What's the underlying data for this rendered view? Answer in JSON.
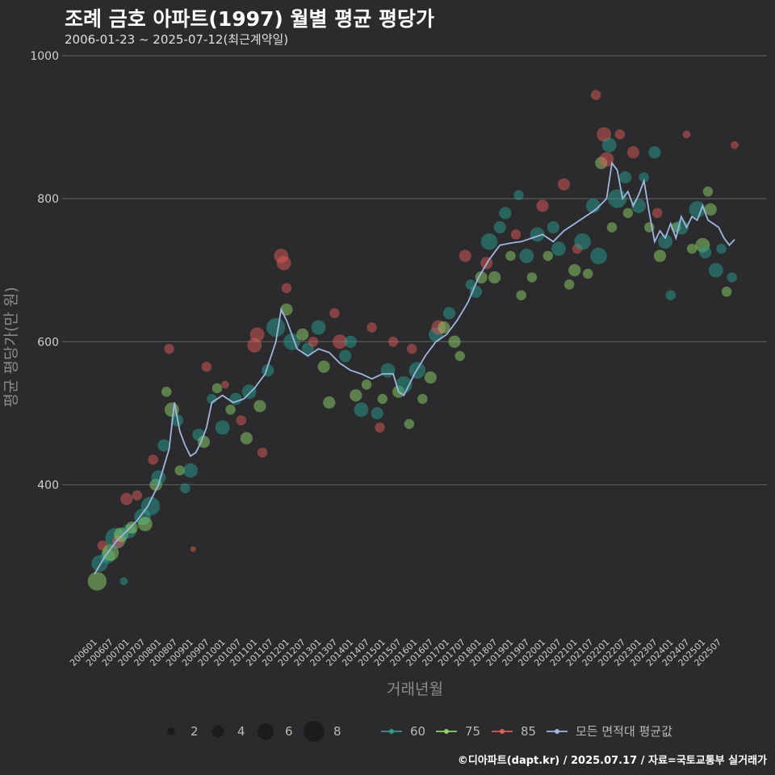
{
  "title": "조례 금호 아파트(1997) 월별 평균 평당가",
  "subtitle": "2006-01-23 ~ 2025-07-12(최근계약일)",
  "credit": "©디아파트(dapt.kr) / 2025.07.17 / 자료=국토교통부 실거래가",
  "colors": {
    "background": "#2b2a2c",
    "grid": "#5a595b",
    "series_60": "#2a9d8f",
    "series_75": "#8fd36a",
    "series_85": "#e05a5a",
    "avg_line": "#9fb7e0"
  },
  "chart_data": {
    "type": "scatter",
    "title": "조례 금호 아파트(1997) 월별 평균 평당가",
    "xlabel": "거래년월",
    "ylabel": "평균 평당가(만 원)",
    "ylim": [
      195,
      1000
    ],
    "yticks": [
      400,
      600,
      800,
      1000
    ],
    "x_tick_labels": [
      "200601",
      "200607",
      "200701",
      "200707",
      "200801",
      "200807",
      "200901",
      "200907",
      "201001",
      "201007",
      "201101",
      "201107",
      "201201",
      "201207",
      "201301",
      "201307",
      "201401",
      "201407",
      "201501",
      "201507",
      "201601",
      "201607",
      "201701",
      "201707",
      "201801",
      "201807",
      "201901",
      "201907",
      "202001",
      "202007",
      "202101",
      "202107",
      "202201",
      "202207",
      "202301",
      "202307",
      "202401",
      "202407",
      "202501",
      "202507"
    ],
    "size_legend": [
      {
        "label": "2",
        "count": 2
      },
      {
        "label": "4",
        "count": 4
      },
      {
        "label": "6",
        "count": 6
      },
      {
        "label": "8",
        "count": 8
      }
    ],
    "series": [
      {
        "name": "60",
        "color": "#2a9d8f"
      },
      {
        "name": "75",
        "color": "#8fd36a"
      },
      {
        "name": "85",
        "color": "#e05a5a"
      },
      {
        "name": "모든 면적대 평균값",
        "color": "#9fb7e0"
      }
    ],
    "avg_line": [
      [
        0,
        275
      ],
      [
        4,
        300
      ],
      [
        8,
        320
      ],
      [
        12,
        335
      ],
      [
        16,
        350
      ],
      [
        20,
        370
      ],
      [
        24,
        400
      ],
      [
        28,
        450
      ],
      [
        30,
        515
      ],
      [
        32,
        475
      ],
      [
        34,
        455
      ],
      [
        36,
        440
      ],
      [
        38,
        445
      ],
      [
        40,
        460
      ],
      [
        42,
        480
      ],
      [
        44,
        515
      ],
      [
        48,
        525
      ],
      [
        52,
        515
      ],
      [
        56,
        520
      ],
      [
        60,
        535
      ],
      [
        64,
        555
      ],
      [
        68,
        600
      ],
      [
        70,
        645
      ],
      [
        72,
        630
      ],
      [
        76,
        590
      ],
      [
        80,
        580
      ],
      [
        84,
        590
      ],
      [
        88,
        585
      ],
      [
        92,
        570
      ],
      [
        96,
        560
      ],
      [
        100,
        555
      ],
      [
        104,
        548
      ],
      [
        108,
        555
      ],
      [
        112,
        555
      ],
      [
        114,
        530
      ],
      [
        116,
        525
      ],
      [
        118,
        540
      ],
      [
        120,
        555
      ],
      [
        124,
        580
      ],
      [
        128,
        600
      ],
      [
        132,
        610
      ],
      [
        136,
        630
      ],
      [
        140,
        655
      ],
      [
        144,
        690
      ],
      [
        148,
        715
      ],
      [
        152,
        735
      ],
      [
        156,
        738
      ],
      [
        160,
        740
      ],
      [
        164,
        745
      ],
      [
        168,
        750
      ],
      [
        172,
        740
      ],
      [
        176,
        755
      ],
      [
        180,
        765
      ],
      [
        184,
        775
      ],
      [
        188,
        785
      ],
      [
        192,
        800
      ],
      [
        194,
        850
      ],
      [
        196,
        840
      ],
      [
        198,
        800
      ],
      [
        200,
        810
      ],
      [
        202,
        790
      ],
      [
        204,
        805
      ],
      [
        206,
        825
      ],
      [
        208,
        780
      ],
      [
        210,
        740
      ],
      [
        212,
        755
      ],
      [
        214,
        745
      ],
      [
        216,
        765
      ],
      [
        218,
        745
      ],
      [
        220,
        775
      ],
      [
        222,
        760
      ],
      [
        224,
        775
      ],
      [
        226,
        770
      ],
      [
        228,
        790
      ],
      [
        230,
        770
      ],
      [
        232,
        765
      ],
      [
        234,
        760
      ],
      [
        236,
        745
      ],
      [
        238,
        735
      ],
      [
        240,
        743
      ]
    ],
    "points": [
      {
        "s": "60",
        "x": 2,
        "y": 290,
        "c": 6
      },
      {
        "s": "75",
        "x": 1,
        "y": 265,
        "c": 7
      },
      {
        "s": "85",
        "x": 3,
        "y": 315,
        "c": 3
      },
      {
        "s": "60",
        "x": 5,
        "y": 300,
        "c": 5
      },
      {
        "s": "75",
        "x": 6,
        "y": 305,
        "c": 6
      },
      {
        "s": "60",
        "x": 8,
        "y": 325,
        "c": 8
      },
      {
        "s": "85",
        "x": 9,
        "y": 320,
        "c": 4
      },
      {
        "s": "75",
        "x": 10,
        "y": 330,
        "c": 5
      },
      {
        "s": "60",
        "x": 11,
        "y": 265,
        "c": 2
      },
      {
        "s": "85",
        "x": 12,
        "y": 380,
        "c": 4
      },
      {
        "s": "60",
        "x": 13,
        "y": 335,
        "c": 5
      },
      {
        "s": "75",
        "x": 14,
        "y": 340,
        "c": 4
      },
      {
        "s": "85",
        "x": 16,
        "y": 385,
        "c": 3
      },
      {
        "s": "60",
        "x": 18,
        "y": 355,
        "c": 6
      },
      {
        "s": "75",
        "x": 19,
        "y": 345,
        "c": 5
      },
      {
        "s": "60",
        "x": 21,
        "y": 370,
        "c": 7
      },
      {
        "s": "85",
        "x": 22,
        "y": 435,
        "c": 3
      },
      {
        "s": "75",
        "x": 23,
        "y": 400,
        "c": 4
      },
      {
        "s": "60",
        "x": 24,
        "y": 410,
        "c": 5
      },
      {
        "s": "60",
        "x": 26,
        "y": 455,
        "c": 4
      },
      {
        "s": "75",
        "x": 27,
        "y": 530,
        "c": 3
      },
      {
        "s": "85",
        "x": 28,
        "y": 590,
        "c": 3
      },
      {
        "s": "75",
        "x": 29,
        "y": 505,
        "c": 5
      },
      {
        "s": "60",
        "x": 31,
        "y": 490,
        "c": 4
      },
      {
        "s": "75",
        "x": 32,
        "y": 420,
        "c": 3
      },
      {
        "s": "60",
        "x": 34,
        "y": 395,
        "c": 3
      },
      {
        "s": "60",
        "x": 36,
        "y": 420,
        "c": 5
      },
      {
        "s": "85",
        "x": 37,
        "y": 310,
        "c": 1
      },
      {
        "s": "60",
        "x": 39,
        "y": 470,
        "c": 4
      },
      {
        "s": "75",
        "x": 41,
        "y": 460,
        "c": 4
      },
      {
        "s": "85",
        "x": 42,
        "y": 565,
        "c": 3
      },
      {
        "s": "60",
        "x": 44,
        "y": 520,
        "c": 3
      },
      {
        "s": "75",
        "x": 46,
        "y": 535,
        "c": 3
      },
      {
        "s": "60",
        "x": 48,
        "y": 480,
        "c": 5
      },
      {
        "s": "85",
        "x": 49,
        "y": 540,
        "c": 2
      },
      {
        "s": "75",
        "x": 51,
        "y": 505,
        "c": 3
      },
      {
        "s": "60",
        "x": 53,
        "y": 520,
        "c": 4
      },
      {
        "s": "85",
        "x": 55,
        "y": 490,
        "c": 3
      },
      {
        "s": "75",
        "x": 57,
        "y": 465,
        "c": 4
      },
      {
        "s": "60",
        "x": 58,
        "y": 530,
        "c": 5
      },
      {
        "s": "85",
        "x": 60,
        "y": 595,
        "c": 5
      },
      {
        "s": "85",
        "x": 61,
        "y": 610,
        "c": 5
      },
      {
        "s": "75",
        "x": 62,
        "y": 510,
        "c": 4
      },
      {
        "s": "85",
        "x": 63,
        "y": 445,
        "c": 3
      },
      {
        "s": "60",
        "x": 65,
        "y": 560,
        "c": 4
      },
      {
        "s": "60",
        "x": 68,
        "y": 620,
        "c": 7
      },
      {
        "s": "85",
        "x": 70,
        "y": 720,
        "c": 5
      },
      {
        "s": "85",
        "x": 71,
        "y": 710,
        "c": 5
      },
      {
        "s": "75",
        "x": 72,
        "y": 645,
        "c": 4
      },
      {
        "s": "85",
        "x": 72,
        "y": 675,
        "c": 3
      },
      {
        "s": "60",
        "x": 74,
        "y": 600,
        "c": 6
      },
      {
        "s": "75",
        "x": 78,
        "y": 610,
        "c": 4
      },
      {
        "s": "60",
        "x": 80,
        "y": 590,
        "c": 4
      },
      {
        "s": "85",
        "x": 82,
        "y": 600,
        "c": 3
      },
      {
        "s": "60",
        "x": 84,
        "y": 620,
        "c": 5
      },
      {
        "s": "75",
        "x": 86,
        "y": 565,
        "c": 4
      },
      {
        "s": "75",
        "x": 88,
        "y": 515,
        "c": 4
      },
      {
        "s": "85",
        "x": 90,
        "y": 640,
        "c": 3
      },
      {
        "s": "85",
        "x": 92,
        "y": 600,
        "c": 5
      },
      {
        "s": "60",
        "x": 94,
        "y": 580,
        "c": 4
      },
      {
        "s": "60",
        "x": 96,
        "y": 600,
        "c": 4
      },
      {
        "s": "75",
        "x": 98,
        "y": 525,
        "c": 4
      },
      {
        "s": "60",
        "x": 100,
        "y": 505,
        "c": 5
      },
      {
        "s": "75",
        "x": 102,
        "y": 540,
        "c": 3
      },
      {
        "s": "85",
        "x": 104,
        "y": 620,
        "c": 3
      },
      {
        "s": "60",
        "x": 106,
        "y": 500,
        "c": 4
      },
      {
        "s": "85",
        "x": 107,
        "y": 480,
        "c": 3
      },
      {
        "s": "75",
        "x": 108,
        "y": 520,
        "c": 3
      },
      {
        "s": "60",
        "x": 110,
        "y": 560,
        "c": 5
      },
      {
        "s": "85",
        "x": 112,
        "y": 600,
        "c": 3
      },
      {
        "s": "75",
        "x": 114,
        "y": 530,
        "c": 4
      },
      {
        "s": "60",
        "x": 116,
        "y": 540,
        "c": 6
      },
      {
        "s": "75",
        "x": 118,
        "y": 485,
        "c": 3
      },
      {
        "s": "85",
        "x": 119,
        "y": 590,
        "c": 3
      },
      {
        "s": "60",
        "x": 121,
        "y": 560,
        "c": 6
      },
      {
        "s": "75",
        "x": 123,
        "y": 520,
        "c": 3
      },
      {
        "s": "75",
        "x": 126,
        "y": 550,
        "c": 4
      },
      {
        "s": "60",
        "x": 128,
        "y": 610,
        "c": 5
      },
      {
        "s": "85",
        "x": 129,
        "y": 620,
        "c": 5
      },
      {
        "s": "75",
        "x": 131,
        "y": 620,
        "c": 4
      },
      {
        "s": "60",
        "x": 133,
        "y": 640,
        "c": 4
      },
      {
        "s": "75",
        "x": 135,
        "y": 600,
        "c": 4
      },
      {
        "s": "75",
        "x": 137,
        "y": 580,
        "c": 3
      },
      {
        "s": "85",
        "x": 139,
        "y": 720,
        "c": 4
      },
      {
        "s": "60",
        "x": 141,
        "y": 680,
        "c": 3
      },
      {
        "s": "60",
        "x": 143,
        "y": 670,
        "c": 4
      },
      {
        "s": "75",
        "x": 145,
        "y": 690,
        "c": 4
      },
      {
        "s": "85",
        "x": 147,
        "y": 710,
        "c": 4
      },
      {
        "s": "60",
        "x": 148,
        "y": 740,
        "c": 6
      },
      {
        "s": "75",
        "x": 150,
        "y": 690,
        "c": 4
      },
      {
        "s": "60",
        "x": 152,
        "y": 760,
        "c": 4
      },
      {
        "s": "60",
        "x": 154,
        "y": 780,
        "c": 4
      },
      {
        "s": "75",
        "x": 156,
        "y": 720,
        "c": 3
      },
      {
        "s": "85",
        "x": 158,
        "y": 750,
        "c": 3
      },
      {
        "s": "60",
        "x": 159,
        "y": 805,
        "c": 3
      },
      {
        "s": "75",
        "x": 160,
        "y": 665,
        "c": 3
      },
      {
        "s": "60",
        "x": 162,
        "y": 720,
        "c": 5
      },
      {
        "s": "75",
        "x": 164,
        "y": 690,
        "c": 3
      },
      {
        "s": "60",
        "x": 166,
        "y": 750,
        "c": 5
      },
      {
        "s": "85",
        "x": 168,
        "y": 790,
        "c": 4
      },
      {
        "s": "75",
        "x": 170,
        "y": 720,
        "c": 3
      },
      {
        "s": "60",
        "x": 172,
        "y": 760,
        "c": 4
      },
      {
        "s": "60",
        "x": 174,
        "y": 730,
        "c": 5
      },
      {
        "s": "85",
        "x": 176,
        "y": 820,
        "c": 4
      },
      {
        "s": "75",
        "x": 178,
        "y": 680,
        "c": 3
      },
      {
        "s": "75",
        "x": 180,
        "y": 700,
        "c": 4
      },
      {
        "s": "85",
        "x": 181,
        "y": 730,
        "c": 3
      },
      {
        "s": "60",
        "x": 183,
        "y": 740,
        "c": 6
      },
      {
        "s": "75",
        "x": 185,
        "y": 695,
        "c": 3
      },
      {
        "s": "60",
        "x": 187,
        "y": 790,
        "c": 5
      },
      {
        "s": "85",
        "x": 188,
        "y": 945,
        "c": 3
      },
      {
        "s": "60",
        "x": 189,
        "y": 720,
        "c": 6
      },
      {
        "s": "75",
        "x": 190,
        "y": 850,
        "c": 4
      },
      {
        "s": "85",
        "x": 191,
        "y": 890,
        "c": 5
      },
      {
        "s": "85",
        "x": 192,
        "y": 855,
        "c": 5
      },
      {
        "s": "60",
        "x": 193,
        "y": 875,
        "c": 5
      },
      {
        "s": "75",
        "x": 194,
        "y": 760,
        "c": 3
      },
      {
        "s": "60",
        "x": 196,
        "y": 800,
        "c": 7
      },
      {
        "s": "85",
        "x": 197,
        "y": 890,
        "c": 3
      },
      {
        "s": "60",
        "x": 199,
        "y": 830,
        "c": 4
      },
      {
        "s": "75",
        "x": 200,
        "y": 780,
        "c": 3
      },
      {
        "s": "85",
        "x": 202,
        "y": 865,
        "c": 4
      },
      {
        "s": "60",
        "x": 204,
        "y": 790,
        "c": 5
      },
      {
        "s": "60",
        "x": 206,
        "y": 830,
        "c": 3
      },
      {
        "s": "75",
        "x": 208,
        "y": 760,
        "c": 3
      },
      {
        "s": "60",
        "x": 210,
        "y": 865,
        "c": 4
      },
      {
        "s": "85",
        "x": 211,
        "y": 780,
        "c": 3
      },
      {
        "s": "75",
        "x": 212,
        "y": 720,
        "c": 4
      },
      {
        "s": "60",
        "x": 214,
        "y": 740,
        "c": 5
      },
      {
        "s": "60",
        "x": 216,
        "y": 665,
        "c": 3
      },
      {
        "s": "75",
        "x": 218,
        "y": 760,
        "c": 3
      },
      {
        "s": "60",
        "x": 220,
        "y": 760,
        "c": 5
      },
      {
        "s": "85",
        "x": 222,
        "y": 890,
        "c": 2
      },
      {
        "s": "75",
        "x": 224,
        "y": 730,
        "c": 3
      },
      {
        "s": "60",
        "x": 226,
        "y": 785,
        "c": 6
      },
      {
        "s": "75",
        "x": 228,
        "y": 735,
        "c": 5
      },
      {
        "s": "60",
        "x": 229,
        "y": 725,
        "c": 4
      },
      {
        "s": "75",
        "x": 230,
        "y": 810,
        "c": 3
      },
      {
        "s": "75",
        "x": 231,
        "y": 785,
        "c": 4
      },
      {
        "s": "60",
        "x": 233,
        "y": 700,
        "c": 5
      },
      {
        "s": "60",
        "x": 235,
        "y": 730,
        "c": 3
      },
      {
        "s": "75",
        "x": 237,
        "y": 670,
        "c": 3
      },
      {
        "s": "60",
        "x": 239,
        "y": 690,
        "c": 3
      },
      {
        "s": "85",
        "x": 240,
        "y": 875,
        "c": 2
      }
    ]
  }
}
